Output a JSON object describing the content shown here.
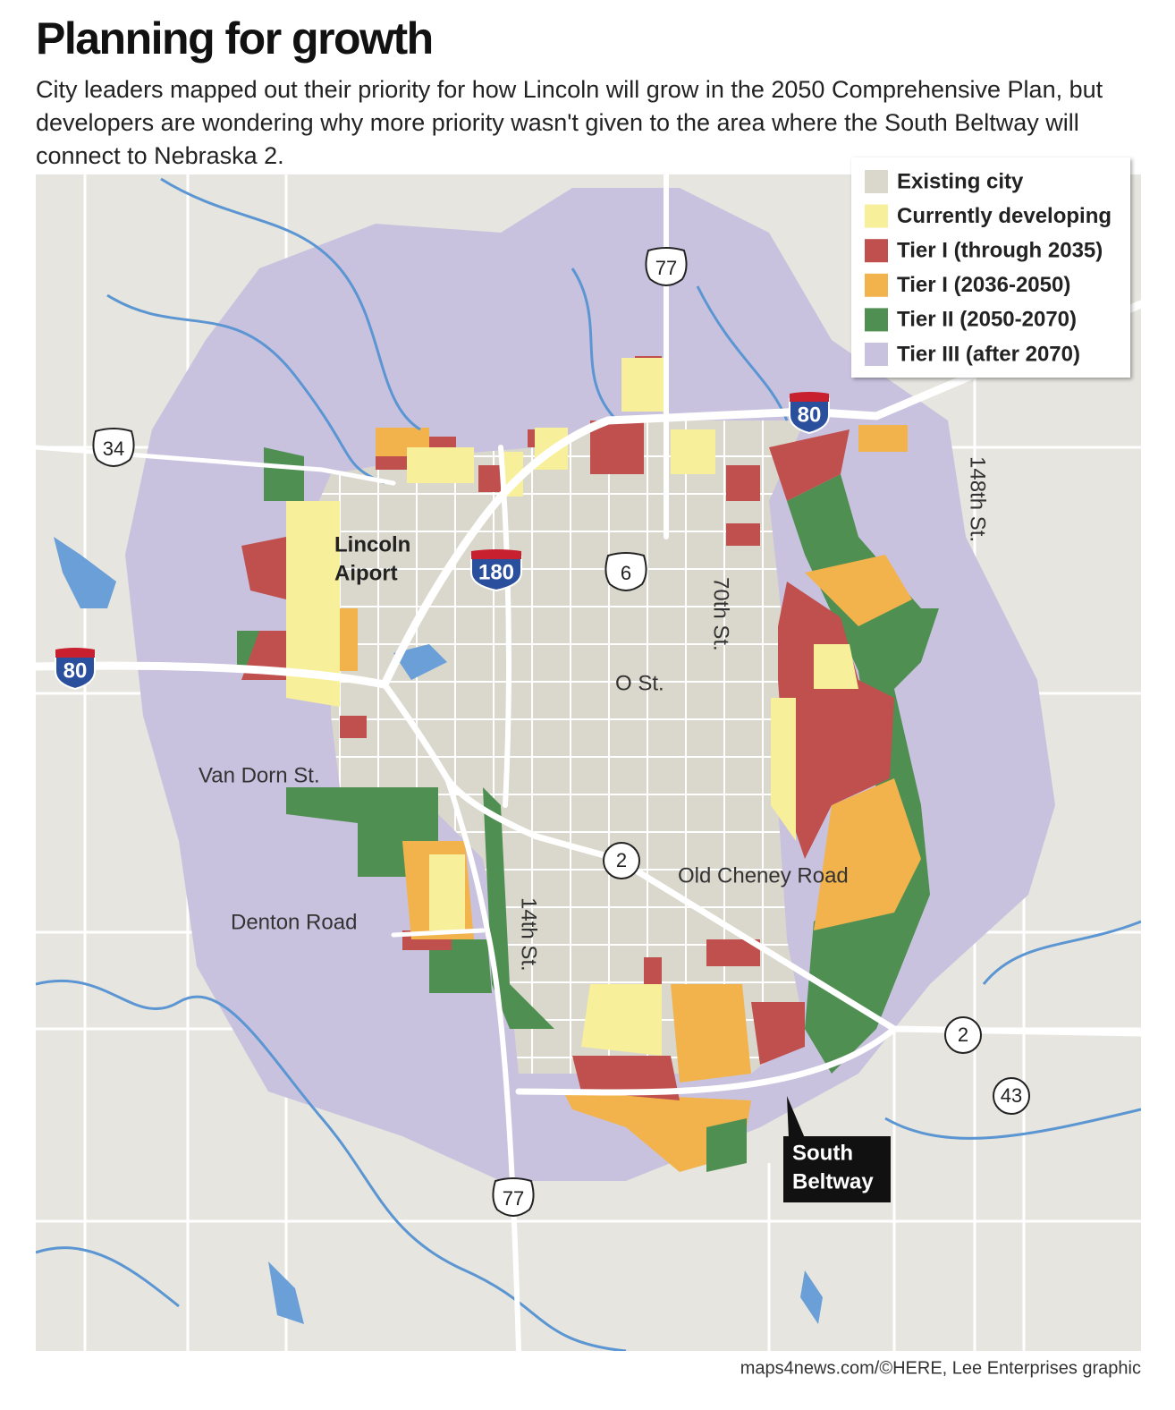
{
  "header": {
    "title": "Planning for growth",
    "subtitle": "City leaders mapped out their priority for how Lincoln will grow in the 2050 Comprehensive Plan, but developers are wondering why more priority wasn't given to the area where the South Beltway will connect to Nebraska 2."
  },
  "legend": [
    {
      "label": "Existing city",
      "color": "#dad8cc"
    },
    {
      "label": "Currently developing",
      "color": "#f8ef9a"
    },
    {
      "label": "Tier I (through 2035)",
      "color": "#c0504d"
    },
    {
      "label": "Tier I (2036-2050)",
      "color": "#f2b34d"
    },
    {
      "label": "Tier II (2050-2070)",
      "color": "#4f8f52"
    },
    {
      "label": "Tier III (after 2070)",
      "color": "#c9c2df"
    }
  ],
  "airport": [
    "Lincoln",
    "Aiport"
  ],
  "streets": [
    "O St.",
    "Van Dorn St.",
    "Denton Road",
    "Old Cheney Road",
    "14th St.",
    "70th St.",
    "148th St."
  ],
  "shields": [
    {
      "label": "77",
      "kind": "us"
    },
    {
      "label": "34",
      "kind": "us"
    },
    {
      "label": "80",
      "kind": "interstate"
    },
    {
      "label": "180",
      "kind": "interstate"
    },
    {
      "label": "6",
      "kind": "us"
    },
    {
      "label": "80",
      "kind": "interstate"
    },
    {
      "label": "2",
      "kind": "state"
    },
    {
      "label": "2",
      "kind": "state"
    },
    {
      "label": "43",
      "kind": "state"
    },
    {
      "label": "77",
      "kind": "us"
    }
  ],
  "callout": [
    "South",
    "Beltway"
  ],
  "credit": "maps4news.com/©HERE, Lee Enterprises graphic"
}
